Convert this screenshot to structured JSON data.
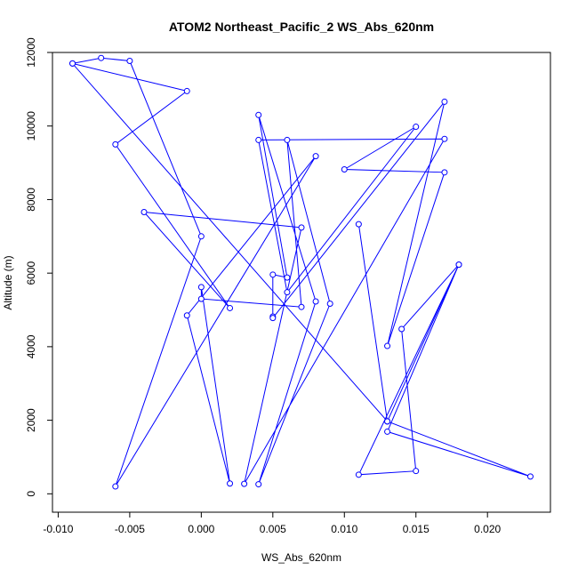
{
  "chart_data": {
    "type": "line",
    "title": "ATOM2 Northeast_Pacific_2 WS_Abs_620nm",
    "xlabel": "WS_Abs_620nm",
    "ylabel": "Altitude (m)",
    "xlim": [
      -0.0104,
      0.0244
    ],
    "ylim": [
      -500,
      12000
    ],
    "xticks": [
      -0.01,
      -0.005,
      0.0,
      0.005,
      0.01,
      0.015,
      0.02
    ],
    "xtick_labels": [
      "-0.010",
      "-0.005",
      "0.000",
      "0.005",
      "0.010",
      "0.015",
      "0.020"
    ],
    "yticks": [
      0,
      2000,
      4000,
      6000,
      8000,
      10000,
      12000
    ],
    "ytick_labels": [
      "0",
      "2000",
      "4000",
      "6000",
      "8000",
      "10000",
      "12000"
    ],
    "grid": false,
    "series_color": "#0000ff",
    "marker": "open-circle",
    "points": [
      {
        "x": -0.009,
        "y": 11700
      },
      {
        "x": -0.007,
        "y": 11850
      },
      {
        "x": -0.005,
        "y": 11770
      },
      {
        "x": 0.0,
        "y": 7000
      },
      {
        "x": -0.006,
        "y": 200
      },
      {
        "x": 0.008,
        "y": 9180
      },
      {
        "x": -0.001,
        "y": 4850
      },
      {
        "x": 0.002,
        "y": 280
      },
      {
        "x": 0.0,
        "y": 5620
      },
      {
        "x": 0.0,
        "y": 5300
      },
      {
        "x": 0.007,
        "y": 5080
      },
      {
        "x": 0.006,
        "y": 9620
      },
      {
        "x": 0.009,
        "y": 5170
      },
      {
        "x": 0.004,
        "y": 260
      },
      {
        "x": 0.008,
        "y": 5230
      },
      {
        "x": 0.004,
        "y": 10300
      },
      {
        "x": 0.006,
        "y": 5880
      },
      {
        "x": 0.005,
        "y": 5960
      },
      {
        "x": 0.005,
        "y": 4820
      },
      {
        "x": 0.005,
        "y": 4780
      },
      {
        "x": 0.017,
        "y": 10660
      },
      {
        "x": 0.013,
        "y": 4020
      },
      {
        "x": 0.017,
        "y": 8740
      },
      {
        "x": 0.01,
        "y": 8820
      },
      {
        "x": 0.015,
        "y": 9980
      },
      {
        "x": 0.006,
        "y": 5480
      },
      {
        "x": 0.004,
        "y": 9620
      },
      {
        "x": 0.017,
        "y": 9650
      },
      {
        "x": 0.003,
        "y": 270
      },
      {
        "x": 0.007,
        "y": 7240
      },
      {
        "x": -0.004,
        "y": 7660
      },
      {
        "x": 0.002,
        "y": 5050
      },
      {
        "x": -0.006,
        "y": 9500
      },
      {
        "x": -0.001,
        "y": 10950
      },
      {
        "x": -0.009,
        "y": 11700
      },
      {
        "x": 0.013,
        "y": 1970
      },
      {
        "x": 0.023,
        "y": 470
      },
      {
        "x": 0.013,
        "y": 1690
      },
      {
        "x": 0.018,
        "y": 6230
      },
      {
        "x": 0.011,
        "y": 520
      },
      {
        "x": 0.015,
        "y": 620
      },
      {
        "x": 0.014,
        "y": 4480
      },
      {
        "x": 0.018,
        "y": 6230
      },
      {
        "x": 0.013,
        "y": 1970
      },
      {
        "x": 0.011,
        "y": 7330
      },
      {
        "x": 0.013,
        "y": 1970
      }
    ]
  }
}
